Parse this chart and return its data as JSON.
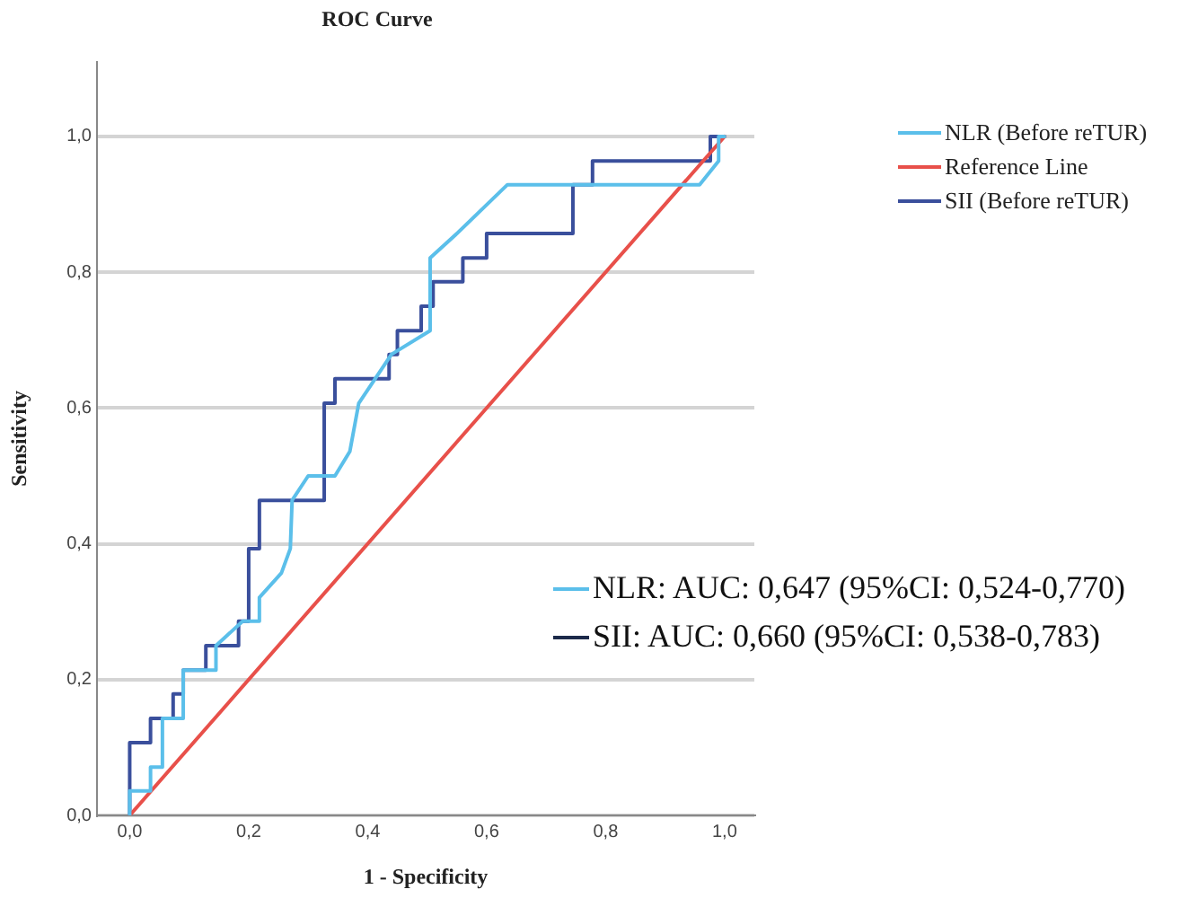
{
  "chart_data": {
    "type": "line",
    "title": "ROC Curve",
    "xlabel": "1 - Specificity",
    "ylabel": "Sensitivity",
    "xlim": [
      -0.055,
      1.05
    ],
    "ylim": [
      0,
      1.11
    ],
    "xticks": [
      {
        "value": 0,
        "label": "0,0"
      },
      {
        "value": 0.2,
        "label": "0,2"
      },
      {
        "value": 0.4,
        "label": "0,4"
      },
      {
        "value": 0.6,
        "label": "0,6"
      },
      {
        "value": 0.8,
        "label": "0,8"
      },
      {
        "value": 1,
        "label": "1,0"
      }
    ],
    "yticks": [
      {
        "value": 0,
        "label": "0,0"
      },
      {
        "value": 0.2,
        "label": "0,2"
      },
      {
        "value": 0.4,
        "label": "0,4"
      },
      {
        "value": 0.6,
        "label": "0,6"
      },
      {
        "value": 0.8,
        "label": "0,8"
      },
      {
        "value": 1,
        "label": "1,0"
      }
    ],
    "grid": "y",
    "legend": "top right",
    "marker": "none",
    "line_style": "solid",
    "series": [
      {
        "name": "NLR (Before reTUR)",
        "color": "#5bbfea",
        "x": [
          0,
          0,
          0.035,
          0.035,
          0.055,
          0.055,
          0.09,
          0.09,
          0.145,
          0.145,
          0.19,
          0.218,
          0.218,
          0.255,
          0.27,
          0.273,
          0.3,
          0.345,
          0.37,
          0.385,
          0.44,
          0.505,
          0.505,
          0.55,
          0.635,
          0.958,
          0.99,
          0.99,
          1
        ],
        "values": [
          0,
          0.036,
          0.036,
          0.071,
          0.071,
          0.143,
          0.143,
          0.214,
          0.214,
          0.25,
          0.286,
          0.286,
          0.321,
          0.357,
          0.393,
          0.464,
          0.5,
          0.5,
          0.536,
          0.607,
          0.679,
          0.714,
          0.821,
          0.857,
          0.929,
          0.929,
          0.964,
          1,
          1
        ]
      },
      {
        "name": "Reference Line",
        "color": "#e8504a",
        "x": [
          0,
          1
        ],
        "values": [
          0,
          1
        ]
      },
      {
        "name": "SII (Before reTUR)",
        "color": "#3a4f9c",
        "x": [
          0,
          0,
          0.035,
          0.035,
          0.073,
          0.073,
          0.09,
          0.09,
          0.128,
          0.128,
          0.183,
          0.183,
          0.2,
          0.2,
          0.218,
          0.218,
          0.327,
          0.327,
          0.345,
          0.345,
          0.436,
          0.436,
          0.45,
          0.45,
          0.49,
          0.49,
          0.51,
          0.51,
          0.56,
          0.56,
          0.6,
          0.6,
          0.745,
          0.745,
          0.778,
          0.778,
          0.976,
          0.976,
          1
        ],
        "values": [
          0,
          0.107,
          0.107,
          0.143,
          0.143,
          0.179,
          0.179,
          0.214,
          0.214,
          0.25,
          0.25,
          0.286,
          0.286,
          0.393,
          0.393,
          0.464,
          0.464,
          0.607,
          0.607,
          0.643,
          0.643,
          0.679,
          0.679,
          0.714,
          0.714,
          0.75,
          0.75,
          0.786,
          0.786,
          0.821,
          0.821,
          0.857,
          0.857,
          0.929,
          0.929,
          0.964,
          0.964,
          1,
          1
        ]
      }
    ],
    "annotations": [
      "NLR: AUC: 0,647 (95%CI: 0,524-0,770)",
      "SII: AUC: 0,660 (95%CI: 0,538-0,783)"
    ]
  }
}
